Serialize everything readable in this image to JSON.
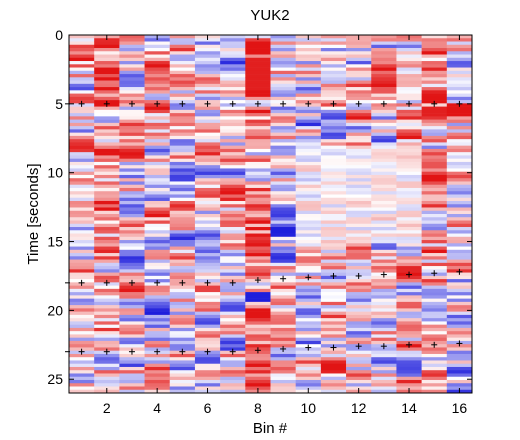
{
  "chart_data": {
    "type": "heatmap",
    "title": "YUK2",
    "xlabel": "Bin #",
    "ylabel": "Time [seconds]",
    "x_range": [
      0.5,
      16.5
    ],
    "y_range": [
      0,
      26
    ],
    "y_reversed": true,
    "x_ticks": [
      2,
      4,
      6,
      8,
      10,
      12,
      14,
      16
    ],
    "y_ticks": [
      0,
      5,
      10,
      15,
      20,
      25
    ],
    "bins": 16,
    "colormap": {
      "negative": "#2222dd",
      "zero": "#ffffff",
      "positive": "#ee1111"
    },
    "marker_symbol": "+",
    "marker_rows": [
      {
        "name": "row-1",
        "x": [
          1,
          2,
          3,
          4,
          5,
          6,
          7,
          8,
          9,
          10,
          11,
          12,
          13,
          14,
          15,
          16
        ],
        "y": [
          5.0,
          5.0,
          5.0,
          5.0,
          5.0,
          5.0,
          5.0,
          5.0,
          5.0,
          5.0,
          5.0,
          5.0,
          5.0,
          5.0,
          5.0,
          5.0
        ]
      },
      {
        "name": "row-2",
        "x": [
          1,
          2,
          3,
          4,
          5,
          6,
          7,
          8,
          9,
          10,
          11,
          12,
          13,
          14,
          15,
          16
        ],
        "y": [
          18.0,
          18.0,
          18.0,
          18.0,
          18.0,
          18.0,
          18.0,
          17.8,
          17.7,
          17.6,
          17.5,
          17.5,
          17.4,
          17.4,
          17.3,
          17.2
        ]
      },
      {
        "name": "row-3",
        "x": [
          1,
          2,
          3,
          4,
          5,
          6,
          7,
          8,
          9,
          10,
          11,
          12,
          13,
          14,
          15,
          16
        ],
        "y": [
          23.0,
          23.0,
          23.0,
          23.0,
          23.0,
          23.0,
          23.0,
          22.9,
          22.8,
          22.7,
          22.7,
          22.6,
          22.6,
          22.5,
          22.5,
          22.4
        ]
      }
    ],
    "edge_markers_y": [
      5.0,
      18.0,
      23.0
    ]
  }
}
